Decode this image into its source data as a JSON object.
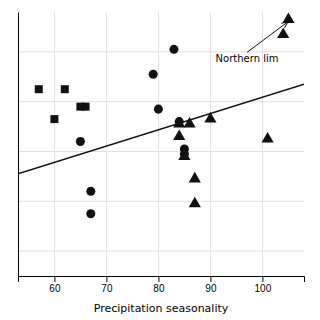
{
  "chart_data": {
    "type": "scatter",
    "xlabel": "Precipitation seasonality",
    "xlim": [
      53,
      108
    ],
    "ylim": [
      0.05,
      0.58
    ],
    "xticks": [
      60,
      70,
      80,
      90,
      100
    ],
    "yticks": [
      0.1,
      0.2,
      0.3,
      0.4,
      0.5
    ],
    "tick_labels": "x",
    "grid": true,
    "series": [
      {
        "type": "line",
        "color": "#111111",
        "x": [
          53,
          108
        ],
        "values": [
          0.255,
          0.435
        ]
      },
      {
        "type": "scatter",
        "marker": "square",
        "color": "#111111",
        "x": [
          57,
          62,
          60,
          65,
          66
        ],
        "values": [
          0.425,
          0.425,
          0.365,
          0.39,
          0.39
        ]
      },
      {
        "type": "scatter",
        "marker": "circle",
        "color": "#111111",
        "x": [
          65,
          67,
          67,
          79,
          80,
          83,
          84,
          85,
          85
        ],
        "values": [
          0.32,
          0.22,
          0.175,
          0.455,
          0.385,
          0.505,
          0.36,
          0.305,
          0.295
        ]
      },
      {
        "type": "scatter",
        "marker": "triangle",
        "color": "#111111",
        "x": [
          84,
          84,
          85,
          86,
          87,
          87,
          90,
          101,
          104,
          105
        ],
        "values": [
          0.355,
          0.33,
          0.29,
          0.355,
          0.245,
          0.195,
          0.365,
          0.325,
          0.535,
          0.565
        ]
      }
    ],
    "annotations": [
      {
        "text": "Northern lim",
        "x": 105.5,
        "y": 0.565,
        "text_x": 91,
        "text_y": 0.485
      }
    ]
  }
}
